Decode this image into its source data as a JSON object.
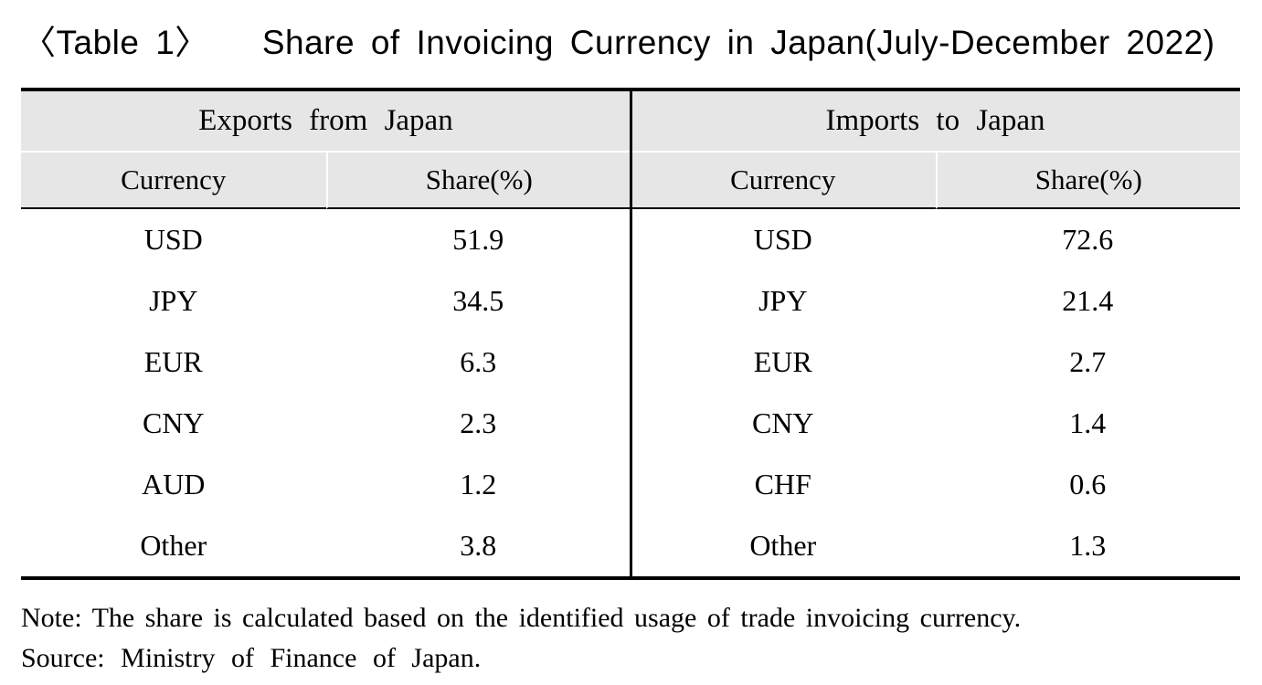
{
  "title": {
    "tag": "〈Table 1〉",
    "text": "Share of Invoicing Currency in Japan(July-December 2022)"
  },
  "chart_data": {
    "type": "table",
    "title": "Share of Invoicing Currency in Japan(July-December 2022)",
    "sections": [
      {
        "name": "Exports from Japan",
        "columns": [
          "Currency",
          "Share(%)"
        ],
        "rows": [
          [
            "USD",
            "51.9"
          ],
          [
            "JPY",
            "34.5"
          ],
          [
            "EUR",
            "6.3"
          ],
          [
            "CNY",
            "2.3"
          ],
          [
            "AUD",
            "1.2"
          ],
          [
            "Other",
            "3.8"
          ]
        ]
      },
      {
        "name": "Imports to Japan",
        "columns": [
          "Currency",
          "Share(%)"
        ],
        "rows": [
          [
            "USD",
            "72.6"
          ],
          [
            "JPY",
            "21.4"
          ],
          [
            "EUR",
            "2.7"
          ],
          [
            "CNY",
            "1.4"
          ],
          [
            "CHF",
            "0.6"
          ],
          [
            "Other",
            "1.3"
          ]
        ]
      }
    ]
  },
  "notes": {
    "note": "Note: The share is calculated based on the identified usage of trade invoicing currency.",
    "source": "Source: Ministry of Finance of Japan."
  },
  "colors": {
    "header_bg": "#e6e6e6",
    "rule": "#000000",
    "text": "#000000",
    "background": "#ffffff"
  }
}
